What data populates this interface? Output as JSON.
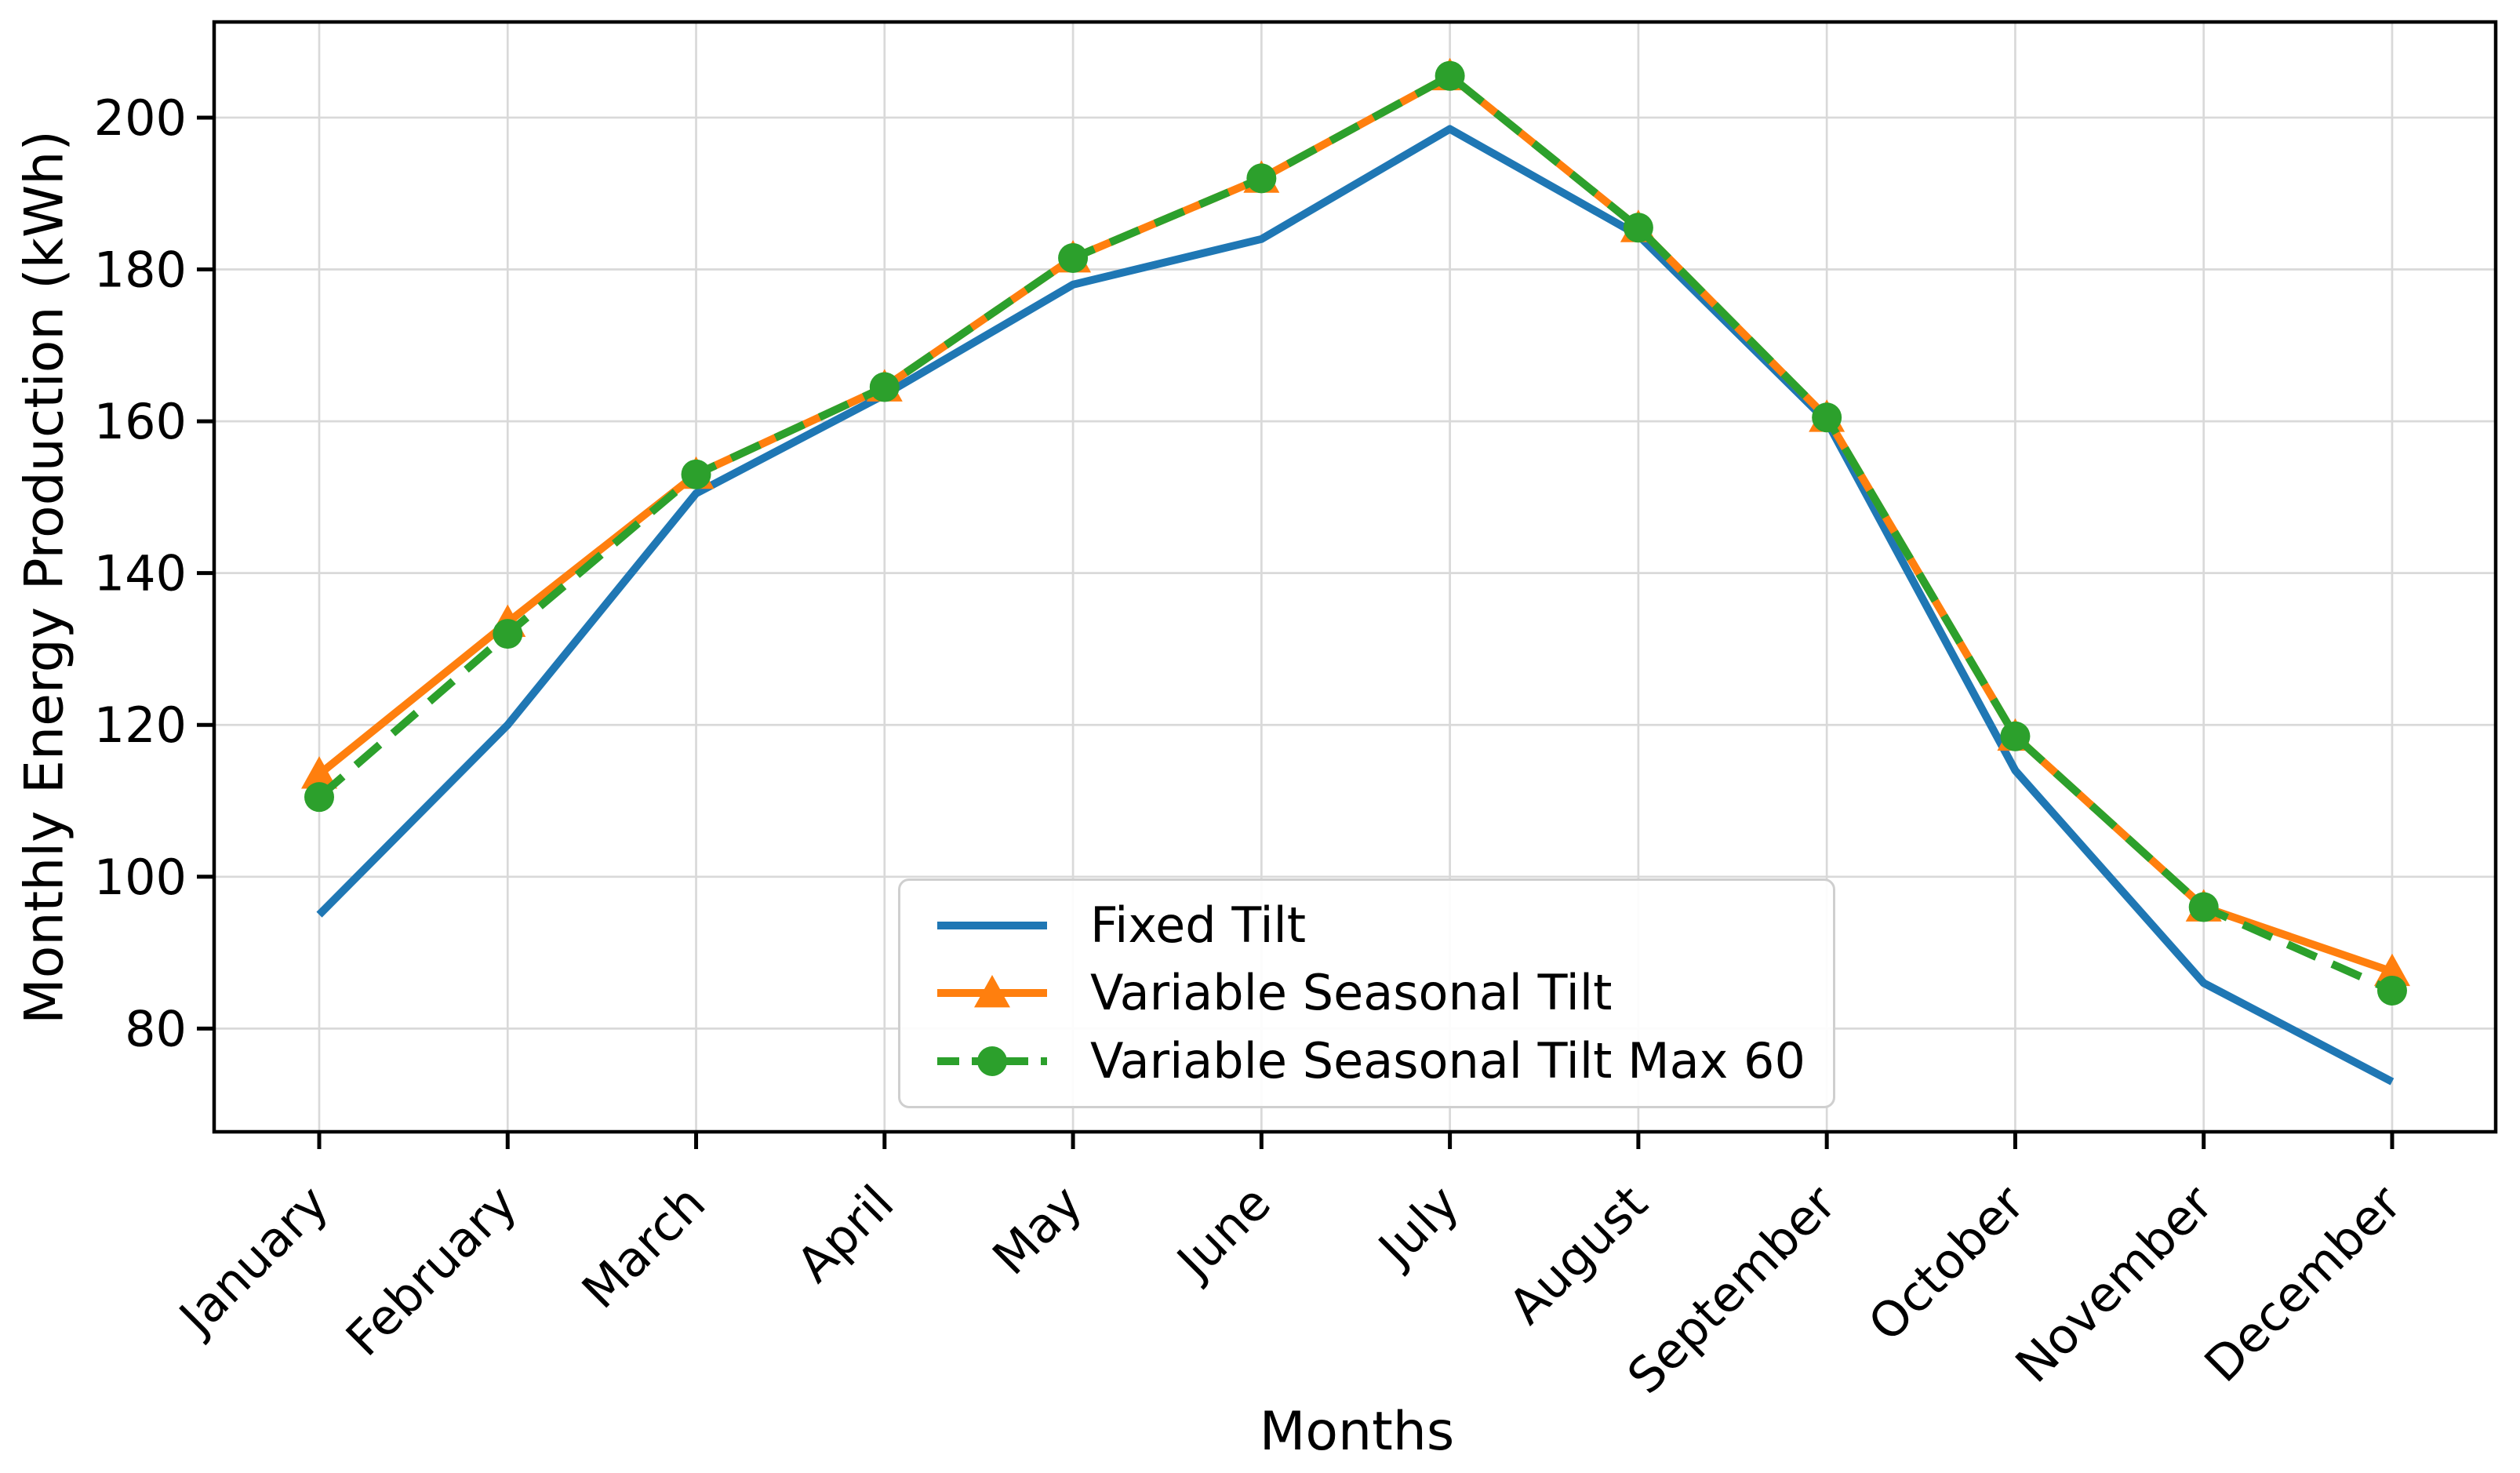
{
  "chart_data": {
    "type": "line",
    "title": "",
    "xlabel": "Months",
    "ylabel": "Monthly Energy Production (kWh)",
    "categories": [
      "January",
      "February",
      "March",
      "April",
      "May",
      "June",
      "July",
      "August",
      "September",
      "October",
      "November",
      "December"
    ],
    "yticks": [
      80,
      100,
      120,
      140,
      160,
      180,
      200
    ],
    "ylim": [
      66.4,
      212.6
    ],
    "grid": true,
    "grid_color": "#d9d9d9",
    "spine_color": "#000000",
    "legend_position": "inside lower-center",
    "series": [
      {
        "name": "Fixed Tilt",
        "color": "#1f77b4",
        "style": "solid",
        "marker": "none",
        "values": [
          95,
          120,
          150.5,
          163.5,
          178,
          184,
          198.5,
          184.5,
          160,
          114,
          86,
          73
        ]
      },
      {
        "name": "Variable Seasonal Tilt",
        "color": "#ff7f0e",
        "style": "solid",
        "marker": "triangle",
        "values": [
          113.5,
          133.5,
          153,
          164.5,
          181.5,
          192,
          205.5,
          185.5,
          160.5,
          118.5,
          96,
          87.5
        ]
      },
      {
        "name": "Variable Seasonal Tilt Max 60",
        "color": "#2ca02c",
        "style": "dashed",
        "marker": "circle",
        "values": [
          110.5,
          132,
          153,
          164.5,
          181.5,
          192,
          205.5,
          185.5,
          160.5,
          118.5,
          96,
          85
        ]
      }
    ]
  }
}
